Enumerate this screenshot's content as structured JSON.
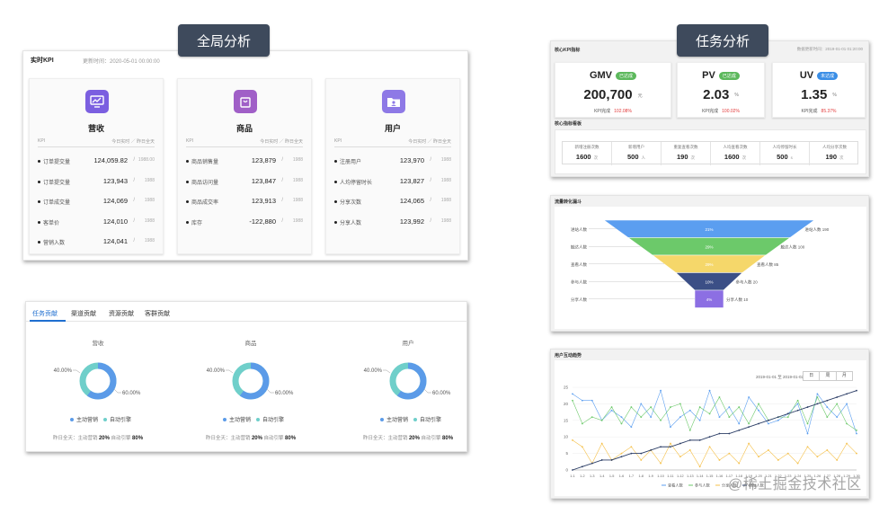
{
  "captions": {
    "global": "全局分析",
    "task": "任务分析"
  },
  "realtime": {
    "title": "实时KPI",
    "updated": "更新时间：2020-05-01 00:00:00",
    "col_left": "KPI",
    "col_right": "今日实时 ／ 昨日全天",
    "cards": [
      {
        "title": "营收",
        "icon": "monitor-chart-icon",
        "color": "#7b5fe0",
        "rows": [
          {
            "label": "订单提交量",
            "value": "124,059.82",
            "sep": "/",
            "compare": "1988.00"
          },
          {
            "label": "订单提交量",
            "value": "123,943",
            "sep": "/",
            "compare": "1988"
          },
          {
            "label": "订单成交量",
            "value": "124,069",
            "sep": "/",
            "compare": "1988"
          },
          {
            "label": "客单价",
            "value": "124,010",
            "sep": "/",
            "compare": "1988"
          },
          {
            "label": "营销入数",
            "value": "124,041",
            "sep": "/",
            "compare": "1988"
          }
        ]
      },
      {
        "title": "商品",
        "icon": "shopping-bag-icon",
        "color": "#a05fc7",
        "rows": [
          {
            "label": "商品销售量",
            "value": "123,879",
            "sep": "/",
            "compare": "1988"
          },
          {
            "label": "商品访问量",
            "value": "123,847",
            "sep": "/",
            "compare": "1988"
          },
          {
            "label": "商品成交率",
            "value": "123,913",
            "sep": "/",
            "compare": "1988"
          },
          {
            "label": "库存",
            "value": "-122,880",
            "sep": "/",
            "compare": "1988"
          }
        ]
      },
      {
        "title": "用户",
        "icon": "user-folder-icon",
        "color": "#8e79e6",
        "rows": [
          {
            "label": "注册用户",
            "value": "123,970",
            "sep": "/",
            "compare": "1988"
          },
          {
            "label": "人均停留时长",
            "value": "123,827",
            "sep": "/",
            "compare": "1988"
          },
          {
            "label": "分享次数",
            "value": "124,065",
            "sep": "/",
            "compare": "1988"
          },
          {
            "label": "分享人数",
            "value": "123,992",
            "sep": "/",
            "compare": "1988"
          }
        ]
      }
    ]
  },
  "contribution": {
    "tabs": [
      "任务贡献",
      "渠道贡献",
      "资源贡献",
      "客群贡献"
    ],
    "active_tab": 0,
    "colors": {
      "active": "#5b9be8",
      "auto": "#6fcfca"
    },
    "donuts": [
      {
        "title": "营收",
        "left_pct": "40.00%",
        "right_pct": "60.00%",
        "legend": [
          "主动营销",
          "自动引擎"
        ],
        "foot_prefix": "昨日全天：主动营销",
        "foot_a": "20%",
        "foot_mid": "自动引擎",
        "foot_b": "80%"
      },
      {
        "title": "商品",
        "left_pct": "40.00%",
        "right_pct": "60.00%",
        "legend": [
          "主动营销",
          "自动引擎"
        ],
        "foot_prefix": "昨日全天：主动营销",
        "foot_a": "20%",
        "foot_mid": "自动引擎",
        "foot_b": "80%"
      },
      {
        "title": "用户",
        "left_pct": "40.00%",
        "right_pct": "60.00%",
        "legend": [
          "主动营销",
          "自动引擎"
        ],
        "foot_prefix": "昨日全天：主动营销",
        "foot_a": "20%",
        "foot_mid": "自动引擎",
        "foot_b": "80%"
      }
    ]
  },
  "core_kpi": {
    "title": "核心KPI指标",
    "updated": "数据更新时间：2019-01-01 01:20:00",
    "cards": [
      {
        "title": "GMV",
        "badge": "已达成",
        "badge_color": "#5cb85c",
        "value": "200,700",
        "unit": "元",
        "foot_label": "KPI完成",
        "foot_value": "102.08%"
      },
      {
        "title": "PV",
        "badge": "已达成",
        "badge_color": "#5cb85c",
        "value": "2.03",
        "unit": "%",
        "foot_label": "KPI完成",
        "foot_value": "100.02%"
      },
      {
        "title": "UV",
        "badge": "未达成",
        "badge_color": "#3a8ee6",
        "value": "1.35",
        "unit": "%",
        "foot_label": "KPI完成",
        "foot_value": "85.37%"
      }
    ],
    "sub_title": "核心指标看板",
    "sub_metrics": [
      {
        "label": "新增注册次数",
        "value": "1600",
        "unit": "次"
      },
      {
        "label": "新增用户",
        "value": "500",
        "unit": "人"
      },
      {
        "label": "重复查看次数",
        "value": "190",
        "unit": "次"
      },
      {
        "label": "人均查看次数",
        "value": "1600",
        "unit": "次"
      },
      {
        "label": "人均停留时长",
        "value": "500",
        "unit": "s"
      },
      {
        "label": "人均分享次数",
        "value": "190",
        "unit": "次"
      }
    ]
  },
  "funnel": {
    "title": "流量转化漏斗",
    "chart_data": {
      "type": "funnel",
      "stages": [
        {
          "name": "进站人数",
          "value": 190,
          "label": "进站人数 190",
          "pct": "21%",
          "color": "#5b9ef0"
        },
        {
          "name": "触达人数",
          "value": 100,
          "label": "触达人数 100",
          "pct": "29%",
          "color": "#6cc96a"
        },
        {
          "name": "查看人数",
          "value": 85,
          "label": "查看人数 85",
          "pct": "29%",
          "color": "#f5d76a"
        },
        {
          "name": "参与人数",
          "value": 20,
          "label": "参与人数 20",
          "pct": "10%",
          "color": "#3b4f86"
        },
        {
          "name": "分享人数",
          "value": 10,
          "label": "分享人数 10",
          "pct": "4%",
          "color": "#8c6fe3"
        }
      ]
    }
  },
  "trend": {
    "title": "用户互动趋势",
    "date_range": "2019-01-01 至 2019-01-02",
    "buttons": [
      "日",
      "周",
      "月"
    ],
    "chart_data": {
      "type": "line",
      "x": [
        "1-1",
        "1-2",
        "1-3",
        "1-4",
        "1-5",
        "1-6",
        "1-7",
        "1-8",
        "1-9",
        "1-10",
        "1-11",
        "1-12",
        "1-13",
        "1-14",
        "1-15",
        "1-16",
        "1-17",
        "1-18",
        "1-19",
        "1-20",
        "1-21",
        "1-22",
        "1-23",
        "1-24",
        "1-25",
        "1-26",
        "1-27",
        "1-28",
        "1-29",
        "1-30"
      ],
      "ylim": [
        0,
        25
      ],
      "yticks": [
        0,
        5,
        10,
        15,
        20,
        25
      ],
      "series": [
        {
          "name": "查看人数",
          "color": "#5b9ef0",
          "values": [
            23,
            21,
            21,
            15,
            18,
            16,
            13,
            20,
            16,
            24,
            13,
            16,
            18,
            15,
            24,
            16,
            19,
            14,
            22,
            18,
            14,
            15,
            17,
            20,
            11,
            23,
            19,
            16,
            20,
            11
          ]
        },
        {
          "name": "参与人数",
          "color": "#6cc96a",
          "values": [
            21,
            14,
            16,
            15,
            19,
            14,
            19,
            16,
            19,
            15,
            19,
            20,
            12,
            19,
            17,
            22,
            16,
            19,
            14,
            20,
            15,
            16,
            16,
            21,
            14,
            22,
            16,
            20,
            14,
            12
          ]
        },
        {
          "name": "分享人数",
          "color": "#f5c04a",
          "values": [
            9,
            7,
            2,
            8,
            3,
            5,
            7,
            3,
            6,
            2,
            8,
            4,
            6,
            1,
            7,
            3,
            5,
            2,
            8,
            4,
            6,
            3,
            5,
            2,
            7,
            4,
            6,
            3,
            8,
            5
          ]
        },
        {
          "name": "进站人数",
          "color": "#2c3e66",
          "values": [
            0,
            1,
            2,
            3,
            3,
            4,
            5,
            5,
            6,
            7,
            7,
            8,
            9,
            9,
            10,
            11,
            11,
            12,
            13,
            14,
            15,
            16,
            17,
            18,
            19,
            20,
            21,
            22,
            23,
            24
          ]
        }
      ]
    }
  }
}
